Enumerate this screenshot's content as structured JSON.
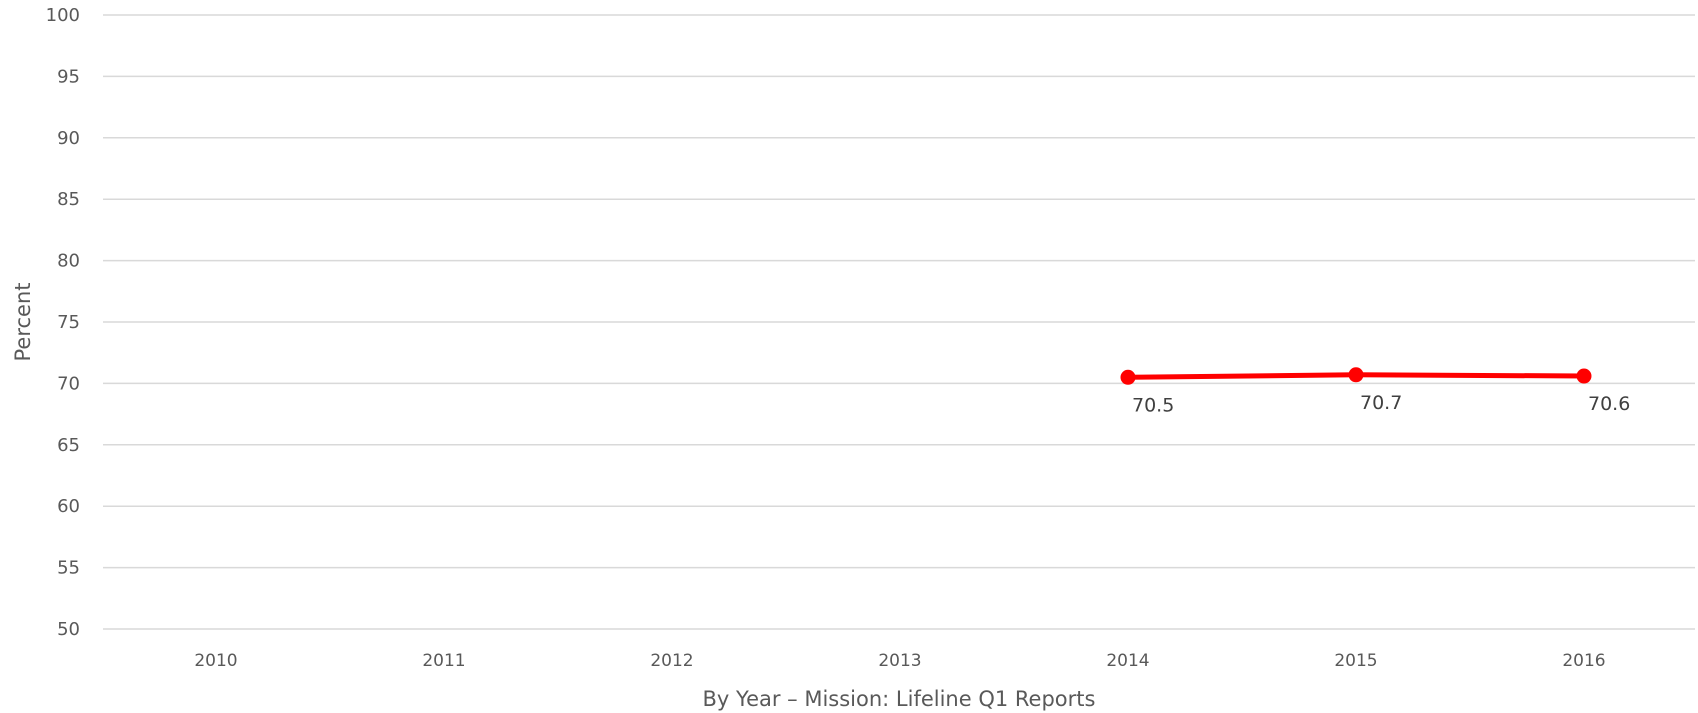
{
  "chart_data": {
    "type": "line",
    "title": "",
    "xlabel": "By Year – Mission: Lifeline Q1 Reports",
    "ylabel": "Percent",
    "categories": [
      "2010",
      "2011",
      "2012",
      "2013",
      "2014",
      "2015",
      "2016"
    ],
    "ylim": [
      50,
      100
    ],
    "yticks": [
      50,
      55,
      60,
      65,
      70,
      75,
      80,
      85,
      90,
      95,
      100
    ],
    "grid": true,
    "legend": "none",
    "series": [
      {
        "color": "#ff0000",
        "values": [
          null,
          null,
          null,
          null,
          70.5,
          70.7,
          70.6
        ],
        "labels": [
          "",
          "",
          "",
          "",
          "70.5",
          "70.7",
          "70.6"
        ]
      }
    ]
  }
}
